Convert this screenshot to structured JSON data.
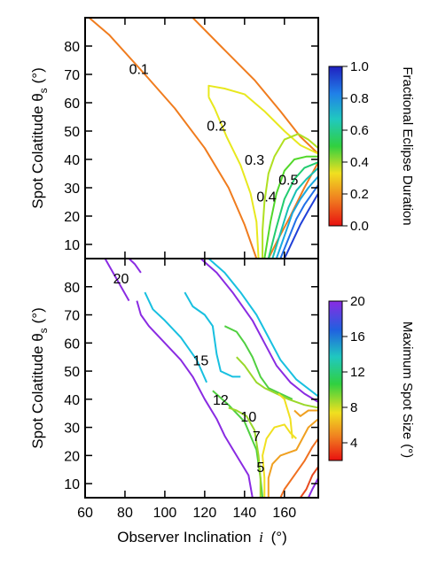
{
  "chart_data": [
    {
      "type": "contour",
      "panel": "top",
      "ylabel": "Spot Colatitude θ",
      "ylabel_sub": "s",
      "ylabel_unit": "(°)",
      "xlim": [
        60,
        177
      ],
      "ylim": [
        5,
        90
      ],
      "yticks": [
        10,
        20,
        30,
        40,
        50,
        60,
        70,
        80
      ],
      "colorbar": {
        "label": "Fractional Eclipse Duration",
        "range": [
          0.0,
          1.0
        ],
        "ticks": [
          "0.0",
          "0.2",
          "0.4",
          "0.6",
          "0.8",
          "1.0"
        ],
        "tick_values": [
          0.0,
          0.2,
          0.4,
          0.6,
          0.8,
          1.0
        ]
      },
      "contours": [
        {
          "level": 0.1,
          "label": "0.1",
          "label_at": [
            87,
            72
          ],
          "color": "#f07c1e",
          "points": [
            [
              62,
              90
            ],
            [
              72,
              84
            ],
            [
              90,
              70
            ],
            [
              105,
              58
            ],
            [
              120,
              44
            ],
            [
              132,
              30
            ],
            [
              140,
              17
            ],
            [
              146,
              5
            ]
          ]
        },
        {
          "level": 0.1,
          "color": "#f07c1e",
          "points": [
            [
              114,
              90
            ],
            [
              128,
              80
            ],
            [
              145,
              68
            ],
            [
              158,
              57
            ],
            [
              168,
              48
            ],
            [
              177,
              42
            ]
          ]
        },
        {
          "level": 0.1,
          "color": "#f07c1e",
          "points": [
            [
              152,
              5
            ],
            [
              157,
              12
            ],
            [
              163,
              20
            ],
            [
              170,
              30
            ],
            [
              177,
              39
            ]
          ]
        },
        {
          "level": 0.2,
          "label": "0.2",
          "label_at": [
            126,
            52
          ],
          "color": "#e8e81e",
          "points": [
            [
              122,
              62
            ],
            [
              122,
              66
            ],
            [
              130,
              65
            ],
            [
              140,
              63
            ],
            [
              150,
              57
            ],
            [
              160,
              50
            ],
            [
              168,
              45
            ],
            [
              177,
              42
            ]
          ]
        },
        {
          "level": 0.2,
          "color": "#e8e81e",
          "points": [
            [
              122,
              62
            ],
            [
              125,
              58
            ],
            [
              131,
              48
            ],
            [
              138,
              38
            ],
            [
              143,
              28
            ],
            [
              146,
              18
            ],
            [
              147,
              5
            ]
          ]
        },
        {
          "level": 0.3,
          "label": "0.3",
          "label_at": [
            145,
            40
          ],
          "color": "#b0e020",
          "points": [
            [
              149,
              5
            ],
            [
              149,
              15
            ],
            [
              150,
              25
            ],
            [
              152,
              35
            ],
            [
              155,
              41
            ],
            [
              160,
              47
            ],
            [
              167,
              49
            ],
            [
              172,
              47
            ],
            [
              177,
              44
            ]
          ]
        },
        {
          "level": 0.4,
          "label": "0.4",
          "label_at": [
            151,
            27
          ],
          "color": "#52d82a",
          "points": [
            [
              150,
              5
            ],
            [
              153,
              18
            ],
            [
              156,
              28
            ],
            [
              160,
              36
            ],
            [
              165,
              40
            ],
            [
              171,
              41
            ],
            [
              177,
              41
            ]
          ]
        },
        {
          "level": 0.5,
          "label": "0.5",
          "label_at": [
            162,
            33
          ],
          "color": "#22cc70",
          "points": [
            [
              152,
              5
            ],
            [
              156,
              16
            ],
            [
              160,
              26
            ],
            [
              165,
              33
            ],
            [
              170,
              37
            ],
            [
              177,
              39
            ]
          ]
        },
        {
          "level": 0.6,
          "color": "#18c0b4",
          "points": [
            [
              154,
              5
            ],
            [
              158,
              14
            ],
            [
              162,
              23
            ],
            [
              166,
              29
            ],
            [
              171,
              33
            ],
            [
              177,
              37
            ]
          ]
        },
        {
          "level": 0.7,
          "color": "#18a8e0",
          "points": [
            [
              156,
              5
            ],
            [
              160,
              13
            ],
            [
              164,
              21
            ],
            [
              168,
              26
            ],
            [
              172,
              30
            ],
            [
              177,
              34
            ]
          ]
        },
        {
          "level": 0.8,
          "color": "#2070e8",
          "points": [
            [
              158,
              5
            ],
            [
              162,
              12
            ],
            [
              166,
              19
            ],
            [
              170,
              24
            ],
            [
              177,
              31
            ]
          ]
        },
        {
          "level": 0.9,
          "color": "#2040d8",
          "points": [
            [
              160,
              5
            ],
            [
              164,
              11
            ],
            [
              168,
              17
            ],
            [
              172,
              22
            ],
            [
              177,
              28
            ]
          ]
        }
      ]
    },
    {
      "type": "contour",
      "panel": "bottom",
      "xlabel": "Observer Inclination",
      "xlabel_var": "i",
      "xlabel_unit": "(°)",
      "ylabel": "Spot Colatitude θ",
      "ylabel_sub": "s",
      "ylabel_unit": "(°)",
      "xlim": [
        60,
        177
      ],
      "ylim": [
        5,
        90
      ],
      "xticks": [
        60,
        80,
        100,
        120,
        140,
        160
      ],
      "yticks": [
        10,
        20,
        30,
        40,
        50,
        60,
        70,
        80
      ],
      "colorbar": {
        "label": "Maximum Spot Size",
        "label_unit": "(°)",
        "range": [
          2,
          20
        ],
        "ticks": [
          "4",
          "8",
          "12",
          "16",
          "20"
        ],
        "tick_values": [
          4,
          8,
          12,
          16,
          20
        ]
      },
      "contours": [
        {
          "level": 20,
          "label": "20",
          "label_at": [
            78,
            83
          ],
          "color": "#8a2be2",
          "points": [
            [
              70,
              90
            ],
            [
              74,
              85
            ],
            [
              78,
              80
            ],
            [
              82,
              75
            ]
          ]
        },
        {
          "level": 20,
          "color": "#8a2be2",
          "points": [
            [
              82,
              90
            ],
            [
              85,
              88
            ],
            [
              88,
              85
            ]
          ]
        },
        {
          "level": 20,
          "color": "#8a2be2",
          "points": [
            [
              86,
              75
            ],
            [
              88,
              70
            ],
            [
              92,
              66
            ],
            [
              100,
              60
            ],
            [
              108,
              54
            ],
            [
              114,
              48
            ],
            [
              120,
              40
            ],
            [
              126,
              33
            ],
            [
              130,
              27
            ],
            [
              136,
              20
            ],
            [
              142,
              13
            ],
            [
              144,
              5
            ]
          ]
        },
        {
          "level": 20,
          "color": "#8a2be2",
          "points": [
            [
              118,
              90
            ],
            [
              126,
              85
            ],
            [
              134,
              78
            ],
            [
              144,
              68
            ],
            [
              150,
              60
            ],
            [
              156,
              52
            ],
            [
              163,
              46
            ],
            [
              170,
              42
            ],
            [
              177,
              39
            ]
          ]
        },
        {
          "level": 16,
          "color": "#18c0e0",
          "points": [
            [
              90,
              78
            ],
            [
              94,
              72
            ],
            [
              100,
              68
            ],
            [
              108,
              62
            ],
            [
              116,
              54
            ],
            [
              121,
              46
            ]
          ]
        },
        {
          "level": 16,
          "color": "#18c0e0",
          "points": [
            [
              110,
              78
            ],
            [
              114,
              73
            ],
            [
              120,
              70
            ],
            [
              124,
              66
            ],
            [
              126,
              56
            ],
            [
              128,
              50
            ],
            [
              134,
              48
            ],
            [
              138,
              48
            ]
          ]
        },
        {
          "level": 15,
          "label": "15",
          "label_at": [
            118,
            54
          ],
          "color": "#18c0e0",
          "points": [
            [
              122,
              90
            ],
            [
              130,
              85
            ],
            [
              138,
              78
            ],
            [
              146,
              70
            ],
            [
              152,
              62
            ],
            [
              158,
              54
            ],
            [
              166,
              47
            ],
            [
              177,
              41
            ]
          ]
        },
        {
          "level": 12,
          "label": "12",
          "label_at": [
            128,
            40
          ],
          "color": "#50d040",
          "points": [
            [
              124,
              43
            ],
            [
              132,
              38
            ],
            [
              140,
              32
            ],
            [
              146,
              22
            ],
            [
              148,
              12
            ],
            [
              149,
              5
            ]
          ]
        },
        {
          "level": 12,
          "color": "#50d040",
          "points": [
            [
              130,
              66
            ],
            [
              136,
              64
            ],
            [
              140,
              60
            ],
            [
              144,
              55
            ],
            [
              148,
              48
            ],
            [
              152,
              44
            ],
            [
              158,
              42
            ],
            [
              164,
              40
            ]
          ]
        },
        {
          "level": 10,
          "label": "10",
          "label_at": [
            142,
            34
          ],
          "color": "#9ad82a",
          "points": [
            [
              136,
              55
            ],
            [
              140,
              52
            ],
            [
              146,
              46
            ],
            [
              150,
              44
            ],
            [
              156,
              42
            ],
            [
              162,
              40
            ],
            [
              170,
              38
            ],
            [
              177,
              37
            ]
          ]
        },
        {
          "level": 10,
          "color": "#9ad82a",
          "points": [
            [
              132,
              37
            ],
            [
              136,
              36
            ],
            [
              141,
              34
            ],
            [
              145,
              29
            ],
            [
              147,
              20
            ],
            [
              148,
              12
            ],
            [
              148,
              5
            ]
          ]
        },
        {
          "level": 7,
          "label": "7",
          "label_at": [
            146,
            27
          ],
          "color": "#f0e020",
          "points": [
            [
              150,
              5
            ],
            [
              150,
              12
            ],
            [
              149,
              20
            ],
            [
              151,
              26
            ],
            [
              155,
              30
            ],
            [
              160,
              31
            ],
            [
              163,
              28
            ],
            [
              166,
              26
            ]
          ]
        },
        {
          "level": 7,
          "color": "#f0e020",
          "points": [
            [
              157,
              42
            ],
            [
              160,
              40
            ],
            [
              163,
              33
            ],
            [
              164,
              26
            ]
          ]
        },
        {
          "level": 5,
          "label": "5",
          "label_at": [
            148,
            16
          ],
          "color": "#f0a020",
          "points": [
            [
              152,
              5
            ],
            [
              152,
              12
            ],
            [
              154,
              17
            ],
            [
              158,
              20
            ],
            [
              162,
              21
            ],
            [
              166,
              22
            ],
            [
              172,
              30
            ],
            [
              177,
              33
            ]
          ]
        },
        {
          "level": 5,
          "color": "#f0a020",
          "points": [
            [
              165,
              36
            ],
            [
              168,
              34
            ],
            [
              172,
              36
            ],
            [
              177,
              36
            ]
          ]
        },
        {
          "level": 4,
          "color": "#f07020",
          "points": [
            [
              158,
              5
            ],
            [
              160,
              8
            ],
            [
              164,
              12
            ],
            [
              170,
              18
            ],
            [
              174,
              23
            ],
            [
              177,
              26
            ]
          ]
        },
        {
          "level": 3,
          "color": "#e84a20",
          "points": [
            [
              168,
              5
            ],
            [
              171,
              8
            ],
            [
              174,
              13
            ],
            [
              177,
              16
            ]
          ]
        },
        {
          "level": 20,
          "color": "#8a2be2",
          "points": [
            [
              172,
              5
            ],
            [
              174,
              8
            ],
            [
              177,
              12
            ]
          ]
        }
      ]
    }
  ]
}
